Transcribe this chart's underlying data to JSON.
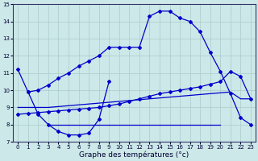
{
  "xlabel": "Graphe des températures (°c)",
  "background_color": "#cce8e8",
  "line_color": "#0000cc",
  "xlim": [
    -0.5,
    23.5
  ],
  "ylim": [
    7,
    15
  ],
  "yticks": [
    7,
    8,
    9,
    10,
    11,
    12,
    13,
    14,
    15
  ],
  "xticks": [
    0,
    1,
    2,
    3,
    4,
    5,
    6,
    7,
    8,
    9,
    10,
    11,
    12,
    13,
    14,
    15,
    16,
    17,
    18,
    19,
    20,
    21,
    22,
    23
  ],
  "line1_x": [
    0,
    1,
    2,
    3,
    4,
    5,
    6,
    7,
    8,
    9,
    10,
    11,
    12,
    13,
    14,
    15,
    16,
    17,
    18,
    19,
    20,
    21,
    22,
    23
  ],
  "line1_y": [
    11.2,
    9.9,
    10.0,
    10.3,
    10.7,
    11.0,
    11.4,
    11.7,
    12.0,
    12.5,
    12.5,
    12.5,
    12.5,
    14.3,
    14.6,
    14.6,
    14.2,
    14.0,
    13.4,
    12.2,
    11.1,
    9.8,
    8.4,
    8.0
  ],
  "line2_x": [
    0,
    1,
    2,
    3,
    4,
    5,
    6,
    7,
    8,
    9,
    10,
    11,
    12,
    13,
    14,
    15,
    16,
    17,
    18,
    19,
    20,
    21,
    22,
    23
  ],
  "line2_y": [
    8.6,
    8.65,
    8.7,
    8.75,
    8.8,
    8.85,
    8.9,
    8.95,
    9.0,
    9.1,
    9.2,
    9.35,
    9.5,
    9.65,
    9.8,
    9.9,
    10.0,
    10.1,
    10.2,
    10.35,
    10.5,
    11.1,
    10.8,
    9.5
  ],
  "line3_x": [
    0,
    1,
    2,
    3,
    4,
    5,
    6,
    7,
    8,
    9,
    10,
    11,
    12,
    13,
    14,
    15,
    16,
    17,
    18,
    19,
    20,
    21,
    22,
    23
  ],
  "line3_y": [
    9.0,
    9.0,
    9.0,
    9.0,
    9.05,
    9.1,
    9.15,
    9.2,
    9.25,
    9.3,
    9.35,
    9.4,
    9.45,
    9.5,
    9.55,
    9.6,
    9.65,
    9.7,
    9.75,
    9.8,
    9.85,
    9.9,
    9.5,
    9.5
  ],
  "line4_x": [
    3,
    20
  ],
  "line4_y": [
    8.0,
    8.0
  ],
  "curve_x": [
    1,
    2,
    3,
    4,
    5,
    6,
    7,
    8,
    9
  ],
  "curve_y": [
    9.9,
    8.6,
    8.0,
    7.6,
    7.4,
    7.4,
    7.5,
    8.3,
    10.5
  ],
  "grid_color": "#aacccc",
  "marker": "D",
  "markersize": 2.0,
  "linewidth": 0.9,
  "tick_fontsize": 5.0,
  "xlabel_fontsize": 6.5
}
